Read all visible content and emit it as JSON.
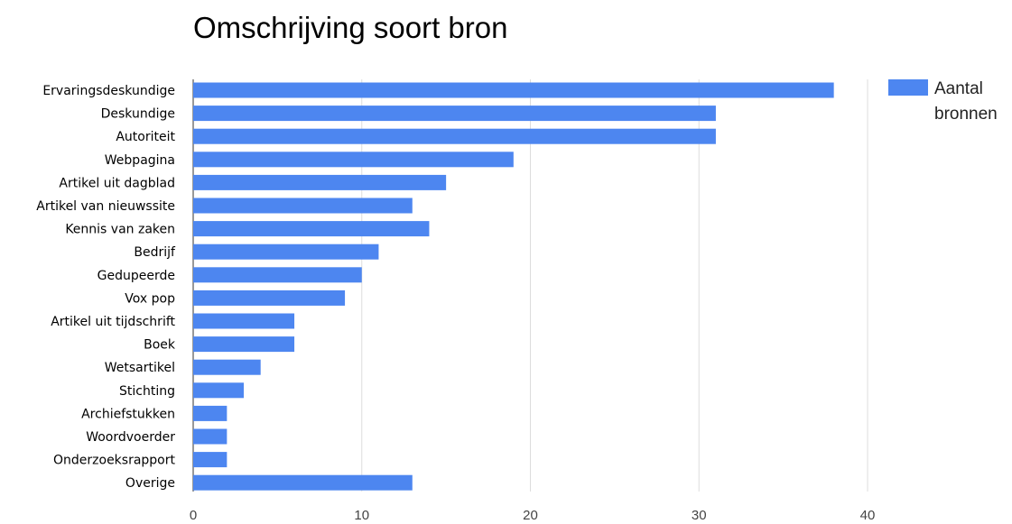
{
  "chart_data": {
    "type": "bar",
    "orientation": "horizontal",
    "title": "Omschrijving soort bron",
    "xlabel": "",
    "ylabel": "",
    "categories": [
      "Ervaringsdeskundige",
      "Deskundige",
      "Autoriteit",
      "Webpagina",
      "Artikel uit dagblad",
      "Artikel van nieuwssite",
      "Kennis van zaken",
      "Bedrijf",
      "Gedupeerde",
      "Vox pop",
      "Artikel uit tijdschrift",
      "Boek",
      "Wetsartikel",
      "Stichting",
      "Archiefstukken",
      "Woordvoerder",
      "Onderzoeksrapport",
      "Overige"
    ],
    "series": [
      {
        "name": "Aantal bronnen",
        "values": [
          38,
          31,
          31,
          19,
          15,
          13,
          14,
          11,
          10,
          9,
          6,
          6,
          4,
          3,
          2,
          2,
          2,
          13
        ],
        "color": "#4d86f0"
      }
    ],
    "xlim": [
      0,
      40
    ],
    "xticks": [
      0,
      10,
      20,
      30,
      40
    ],
    "grid": true,
    "legend_position": "right",
    "legend_lines": [
      "Aantal",
      "bronnen"
    ]
  }
}
